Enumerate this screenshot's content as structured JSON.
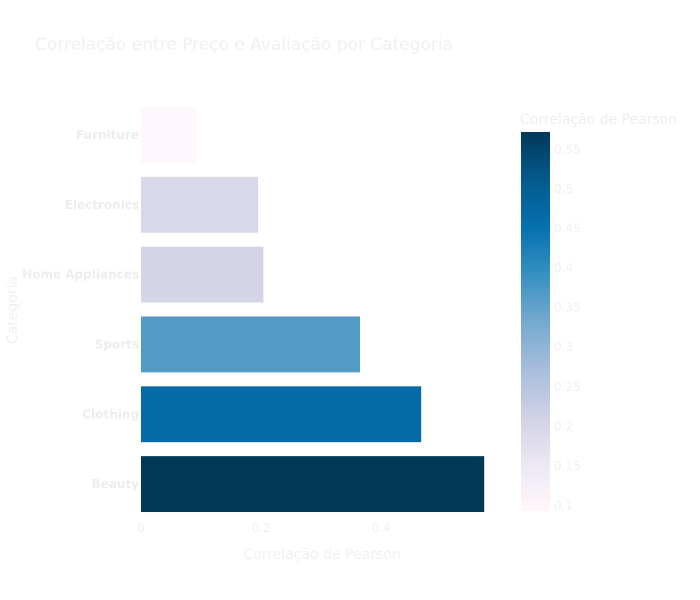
{
  "chart_data": {
    "type": "bar",
    "orientation": "horizontal",
    "title": "Correlação entre Preço e Avaliação por Categoria",
    "xlabel": "Correlação de Pearson",
    "ylabel": "Categoria",
    "categories": [
      "Furniture",
      "Electronics",
      "Home Appliances",
      "Sports",
      "Clothing",
      "Beauty"
    ],
    "values": [
      0.093,
      0.195,
      0.204,
      0.365,
      0.467,
      0.572
    ],
    "xlim": [
      0,
      0.605
    ],
    "x_ticks": [
      {
        "value": 0,
        "label": "0"
      },
      {
        "value": 0.2,
        "label": "0.2"
      },
      {
        "value": 0.4,
        "label": "0.4"
      }
    ],
    "grid": false,
    "colorbar": {
      "title": "Correlação de Pearson",
      "range": [
        0.093,
        0.572
      ],
      "colorscale": [
        "#fff7fb",
        "#ece7f2",
        "#d0d1e6",
        "#a6bddb",
        "#74a9cf",
        "#3690c0",
        "#0570b0",
        "#045a8d",
        "#023858"
      ],
      "ticks": [
        {
          "value": 0.1,
          "label": "0.1"
        },
        {
          "value": 0.15,
          "label": "0.15"
        },
        {
          "value": 0.2,
          "label": "0.2"
        },
        {
          "value": 0.25,
          "label": "0.25"
        },
        {
          "value": 0.3,
          "label": "0.3"
        },
        {
          "value": 0.35,
          "label": "0.35"
        },
        {
          "value": 0.4,
          "label": "0.4"
        },
        {
          "value": 0.45,
          "label": "0.45"
        },
        {
          "value": 0.5,
          "label": "0.5"
        },
        {
          "value": 0.55,
          "label": "0.55"
        }
      ]
    }
  }
}
